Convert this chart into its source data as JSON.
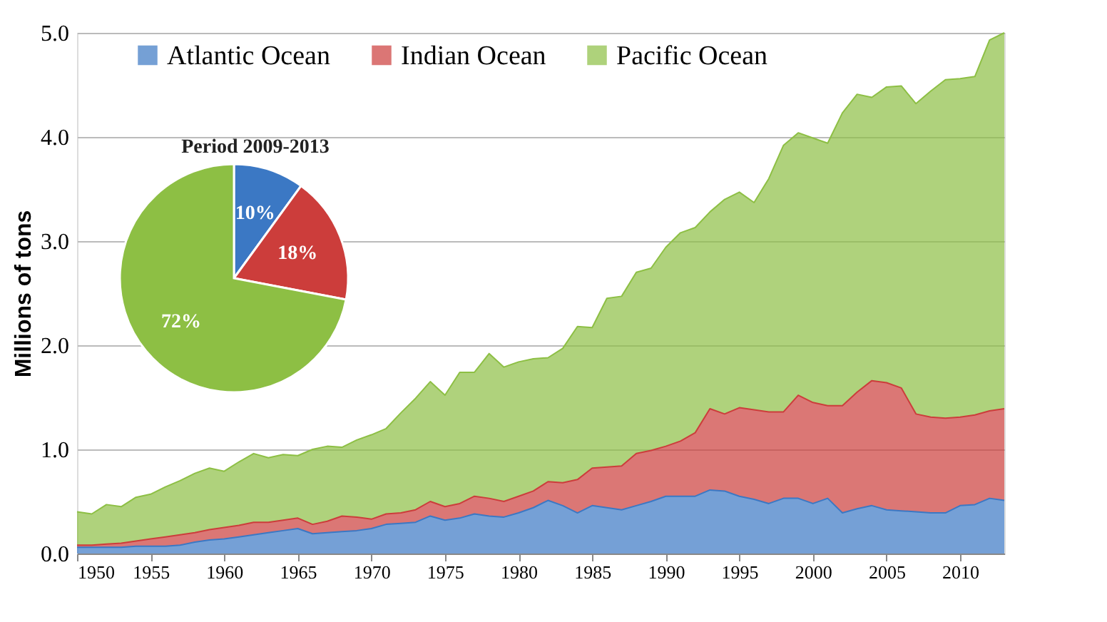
{
  "chart_data": [
    {
      "type": "area",
      "stacked": true,
      "ylabel": "Millions of tons",
      "grid": "y",
      "legend": "top",
      "x": [
        1950,
        1951,
        1952,
        1953,
        1954,
        1955,
        1956,
        1957,
        1958,
        1959,
        1960,
        1961,
        1962,
        1963,
        1964,
        1965,
        1966,
        1967,
        1968,
        1969,
        1970,
        1971,
        1972,
        1973,
        1974,
        1975,
        1976,
        1977,
        1978,
        1979,
        1980,
        1981,
        1982,
        1983,
        1984,
        1985,
        1986,
        1987,
        1988,
        1989,
        1990,
        1991,
        1992,
        1993,
        1994,
        1995,
        1996,
        1997,
        1998,
        1999,
        2000,
        2001,
        2002,
        2003,
        2004,
        2005,
        2006,
        2007,
        2008,
        2009,
        2010,
        2011,
        2012,
        2013
      ],
      "xlim": [
        1950,
        2013
      ],
      "xticks": [
        1950,
        1955,
        1960,
        1965,
        1970,
        1975,
        1980,
        1985,
        1990,
        1995,
        2000,
        2005,
        2010
      ],
      "ylim": [
        0,
        5
      ],
      "yticks": [
        {
          "value": 0,
          "label": "0.0"
        },
        {
          "value": 1,
          "label": "1.0"
        },
        {
          "value": 2,
          "label": "2.0"
        },
        {
          "value": 3,
          "label": "3.0"
        },
        {
          "value": 4,
          "label": "4.0"
        },
        {
          "value": 5,
          "label": "5.0"
        }
      ],
      "series": [
        {
          "name": "Atlantic Ocean",
          "color": "#3b78c4",
          "values": [
            0.06,
            0.06,
            0.06,
            0.06,
            0.07,
            0.07,
            0.07,
            0.08,
            0.11,
            0.13,
            0.14,
            0.16,
            0.18,
            0.2,
            0.22,
            0.24,
            0.19,
            0.2,
            0.21,
            0.22,
            0.24,
            0.28,
            0.29,
            0.3,
            0.36,
            0.32,
            0.34,
            0.38,
            0.36,
            0.35,
            0.39,
            0.44,
            0.51,
            0.46,
            0.39,
            0.46,
            0.44,
            0.42,
            0.46,
            0.5,
            0.55,
            0.55,
            0.55,
            0.61,
            0.6,
            0.55,
            0.52,
            0.48,
            0.53,
            0.53,
            0.48,
            0.53,
            0.39,
            0.43,
            0.46,
            0.42,
            0.41,
            0.4,
            0.39,
            0.39,
            0.46,
            0.47,
            0.53,
            0.51
          ]
        },
        {
          "name": "Indian Ocean",
          "color": "#cc3d3b",
          "values": [
            0.02,
            0.02,
            0.03,
            0.04,
            0.05,
            0.07,
            0.09,
            0.1,
            0.09,
            0.1,
            0.11,
            0.11,
            0.12,
            0.1,
            0.1,
            0.1,
            0.09,
            0.11,
            0.15,
            0.13,
            0.09,
            0.1,
            0.1,
            0.12,
            0.14,
            0.13,
            0.14,
            0.17,
            0.17,
            0.15,
            0.16,
            0.16,
            0.18,
            0.22,
            0.32,
            0.36,
            0.39,
            0.42,
            0.5,
            0.49,
            0.48,
            0.53,
            0.61,
            0.78,
            0.74,
            0.85,
            0.86,
            0.88,
            0.83,
            0.99,
            0.97,
            0.89,
            1.03,
            1.12,
            1.2,
            1.22,
            1.18,
            0.94,
            0.92,
            0.91,
            0.85,
            0.86,
            0.84,
            0.88
          ]
        },
        {
          "name": "Pacific Ocean",
          "color": "#8dbf44",
          "values": [
            0.32,
            0.3,
            0.38,
            0.35,
            0.42,
            0.43,
            0.48,
            0.52,
            0.57,
            0.59,
            0.54,
            0.61,
            0.66,
            0.62,
            0.63,
            0.6,
            0.72,
            0.72,
            0.66,
            0.74,
            0.81,
            0.82,
            0.96,
            1.07,
            1.15,
            1.07,
            1.26,
            1.19,
            1.39,
            1.29,
            1.29,
            1.27,
            1.19,
            1.29,
            1.47,
            1.35,
            1.62,
            1.63,
            1.74,
            1.75,
            1.91,
            2.0,
            1.97,
            1.89,
            2.06,
            2.07,
            1.99,
            2.24,
            2.56,
            2.52,
            2.54,
            2.52,
            2.81,
            2.86,
            2.72,
            2.84,
            2.9,
            2.98,
            3.13,
            3.25,
            3.25,
            3.25,
            3.56,
            3.61
          ]
        }
      ]
    },
    {
      "type": "pie",
      "title": "Period 2009-2013",
      "categories": [
        null,
        null,
        null
      ],
      "values": [
        10,
        18,
        72
      ],
      "colors": [
        "#3b78c4",
        "#cc3d3b",
        "#8dbf44"
      ],
      "value_labels": [
        "10%",
        "18%",
        "72%"
      ]
    }
  ]
}
